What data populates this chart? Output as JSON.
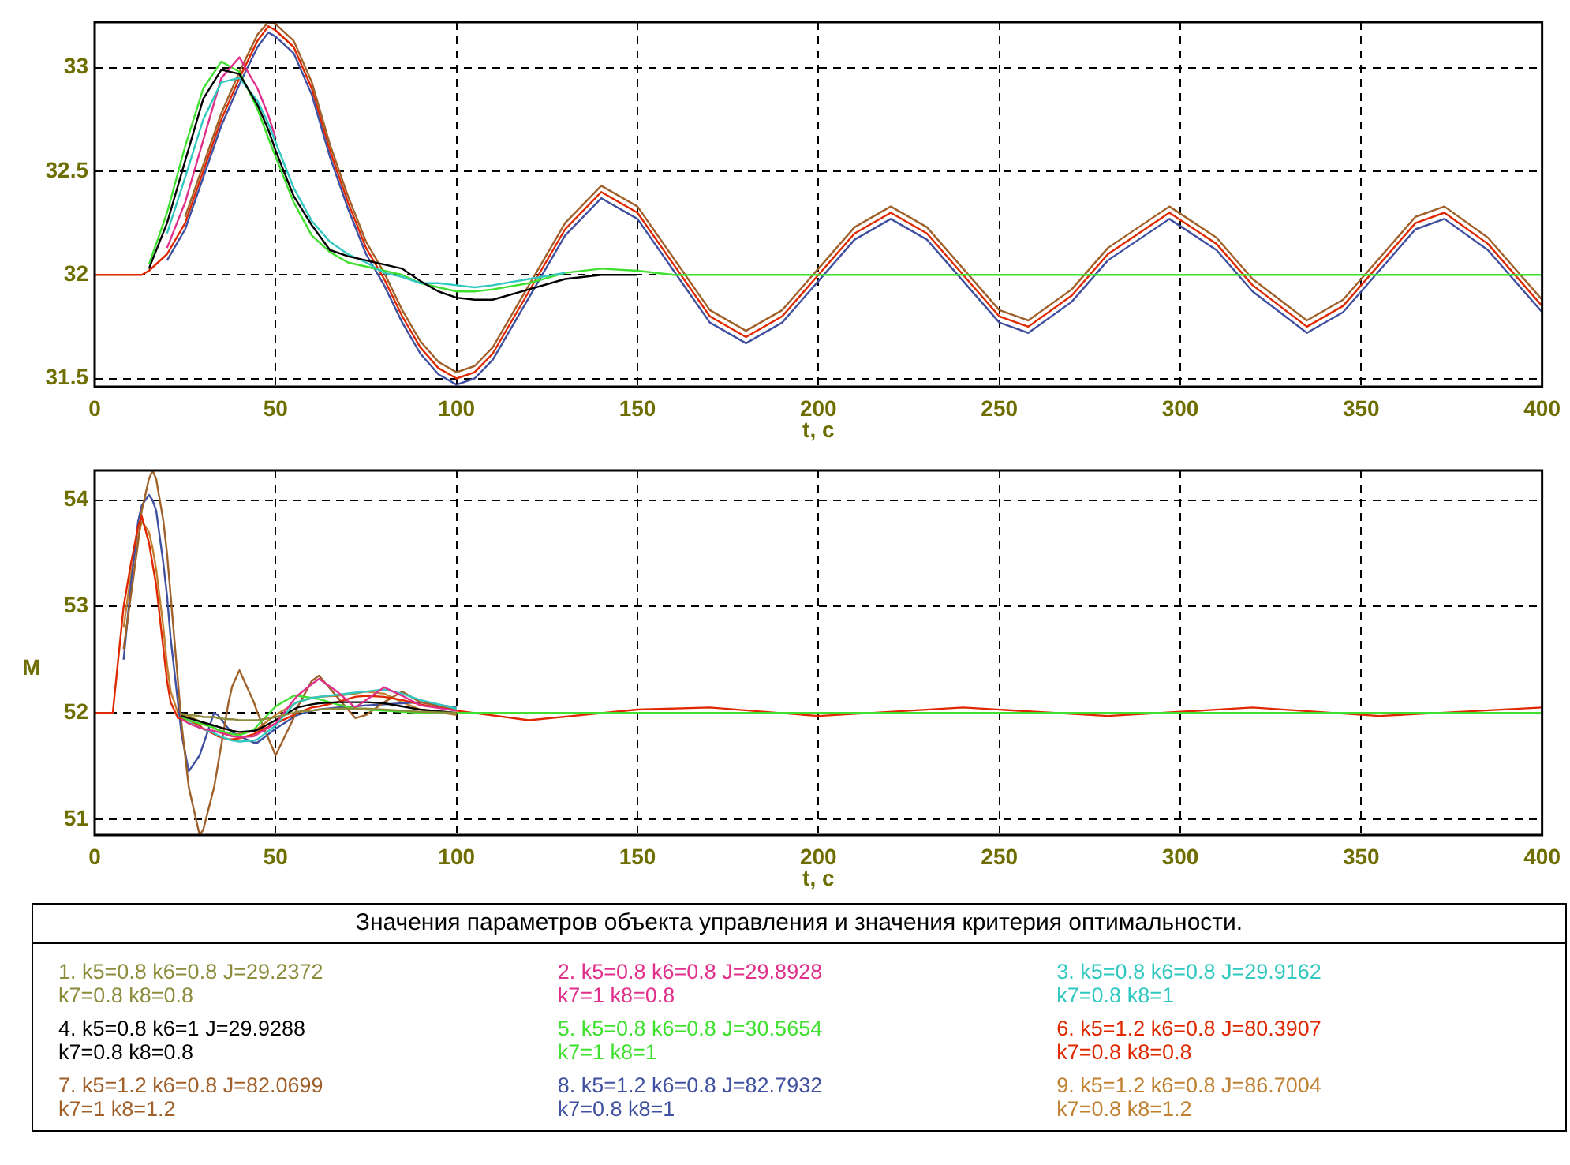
{
  "chart_data": [
    {
      "type": "line",
      "xlabel": "t, c",
      "xlim": [
        0,
        400
      ],
      "xticks": [
        0,
        50,
        100,
        150,
        200,
        250,
        300,
        350,
        400
      ],
      "ylim": [
        31.46,
        33.22
      ],
      "yticks": [
        31.5,
        32,
        32.5,
        33
      ],
      "grid": true,
      "line_style": "solid",
      "x": [
        0,
        5,
        10,
        13,
        15,
        20,
        25,
        30,
        35,
        40,
        45,
        48,
        50,
        55,
        60,
        65,
        70,
        75,
        80,
        85,
        90,
        95,
        100,
        105,
        110,
        120,
        130,
        140,
        150,
        160,
        170,
        180,
        190,
        200,
        210,
        220,
        230,
        240,
        250,
        258,
        270,
        280,
        297,
        310,
        320,
        335,
        345,
        355,
        365,
        373,
        385,
        400
      ],
      "series": [
        {
          "color": "#000000",
          "values": [
            null,
            null,
            null,
            null,
            32.03,
            32.25,
            32.55,
            32.85,
            32.99,
            32.97,
            32.82,
            32.7,
            32.6,
            32.38,
            32.24,
            32.12,
            32.09,
            32.07,
            32.05,
            32.03,
            31.97,
            31.92,
            31.89,
            31.88,
            31.88,
            31.93,
            31.98,
            32.0,
            32.0,
            null,
            null,
            null,
            null,
            null,
            null,
            null,
            null,
            null,
            null,
            null,
            null,
            null,
            null,
            null,
            null,
            null,
            null,
            null,
            null,
            null,
            null,
            null
          ]
        },
        {
          "color": "#30c8c0",
          "values": [
            null,
            null,
            null,
            null,
            null,
            32.2,
            32.47,
            32.75,
            32.93,
            32.95,
            32.84,
            32.73,
            32.64,
            32.42,
            32.26,
            32.16,
            32.1,
            32.06,
            32.01,
            31.99,
            31.96,
            31.96,
            31.95,
            31.94,
            31.95,
            31.98,
            32.01,
            null,
            null,
            null,
            null,
            null,
            null,
            null,
            null,
            null,
            null,
            null,
            null,
            null,
            null,
            null,
            null,
            null,
            null,
            null,
            null,
            null,
            null,
            null,
            null,
            null
          ]
        },
        {
          "color": "#e0308c",
          "values": [
            null,
            null,
            null,
            null,
            null,
            32.13,
            32.35,
            32.65,
            32.95,
            33.05,
            32.9,
            32.77,
            32.66,
            null,
            null,
            null,
            null,
            null,
            null,
            null,
            null,
            null,
            null,
            null,
            null,
            null,
            null,
            null,
            null,
            null,
            null,
            null,
            null,
            null,
            null,
            null,
            null,
            null,
            null,
            null,
            null,
            null,
            null,
            null,
            null,
            null,
            null,
            null,
            null,
            null,
            null,
            null
          ]
        },
        {
          "color": "#40e030",
          "values": [
            null,
            null,
            null,
            null,
            32.05,
            32.3,
            32.62,
            32.9,
            33.03,
            32.98,
            32.8,
            32.66,
            32.57,
            32.35,
            32.19,
            32.11,
            32.06,
            32.04,
            32.02,
            32.0,
            31.96,
            31.94,
            31.92,
            31.92,
            31.93,
            31.96,
            32.01,
            32.03,
            32.02,
            32.0,
            32,
            32,
            32,
            32,
            32,
            32,
            32,
            32,
            32,
            32,
            32,
            32,
            32,
            32,
            32,
            32,
            32,
            32,
            32,
            32,
            32,
            32
          ]
        },
        {
          "color": "#4050a0",
          "values": [
            null,
            null,
            null,
            null,
            null,
            32.07,
            32.22,
            32.47,
            32.72,
            32.92,
            33.1,
            33.17,
            33.15,
            33.07,
            32.87,
            32.57,
            32.32,
            32.1,
            31.95,
            31.77,
            31.62,
            31.52,
            31.47,
            31.5,
            31.59,
            31.89,
            32.19,
            32.37,
            32.27,
            32.02,
            31.77,
            31.67,
            31.77,
            31.97,
            32.17,
            32.27,
            32.17,
            31.97,
            31.77,
            31.72,
            31.87,
            32.07,
            32.27,
            32.12,
            31.92,
            31.72,
            31.82,
            32.02,
            32.22,
            32.27,
            32.12,
            31.82
          ]
        },
        {
          "color": "#a0602a",
          "values": [
            null,
            null,
            null,
            null,
            null,
            null,
            32.28,
            32.53,
            32.78,
            32.98,
            33.16,
            33.22,
            33.21,
            33.13,
            32.93,
            32.63,
            32.38,
            32.16,
            32.01,
            31.83,
            31.68,
            31.58,
            31.53,
            31.56,
            31.65,
            31.95,
            32.25,
            32.43,
            32.33,
            32.08,
            31.83,
            31.73,
            31.83,
            32.03,
            32.23,
            32.33,
            32.23,
            32.03,
            31.83,
            31.78,
            31.93,
            32.13,
            32.33,
            32.18,
            31.98,
            31.78,
            31.88,
            32.08,
            32.28,
            32.33,
            32.18,
            31.88
          ]
        },
        {
          "color": "#e02800",
          "values": [
            32,
            32,
            32,
            32,
            32.02,
            32.1,
            32.25,
            32.5,
            32.75,
            32.95,
            33.13,
            33.2,
            33.18,
            33.1,
            32.9,
            32.6,
            32.35,
            32.13,
            31.98,
            31.8,
            31.65,
            31.55,
            31.5,
            31.53,
            31.62,
            31.92,
            32.22,
            32.4,
            32.3,
            32.05,
            31.8,
            31.7,
            31.8,
            32.0,
            32.2,
            32.3,
            32.2,
            32.0,
            31.8,
            31.75,
            31.9,
            32.1,
            32.3,
            32.15,
            31.95,
            31.75,
            31.85,
            32.05,
            32.25,
            32.3,
            32.15,
            31.85
          ]
        }
      ]
    },
    {
      "type": "line",
      "xlabel": "t, c",
      "ylabel": "M",
      "xlim": [
        0,
        400
      ],
      "xticks": [
        0,
        50,
        100,
        150,
        200,
        250,
        300,
        350,
        400
      ],
      "ylim": [
        50.85,
        54.28
      ],
      "yticks": [
        51,
        52,
        53,
        54
      ],
      "grid": true,
      "line_style": "solid",
      "legend": "bottom",
      "legend_title": "Значения параметров объекта управления и значения критерия оптимальности.",
      "x": [
        0,
        5,
        8,
        10,
        12,
        13,
        15,
        16,
        17,
        19,
        20,
        21,
        23,
        24,
        26,
        29,
        30,
        33,
        34,
        37,
        38,
        40,
        44,
        45,
        50,
        55,
        56,
        60,
        62,
        67,
        72,
        75,
        80,
        85,
        90,
        100,
        120,
        150,
        170,
        200,
        240,
        280,
        320,
        355,
        400
      ],
      "series": [
        {
          "name": "1. k5=0.8  k6=0.8  J=29.2372\nk7=0.8  k8=0.8",
          "color": "#8c8c3c",
          "values": [
            null,
            null,
            null,
            null,
            null,
            null,
            null,
            null,
            null,
            null,
            null,
            null,
            null,
            51.99,
            51.98,
            51.97,
            51.96,
            51.96,
            51.95,
            51.94,
            51.94,
            51.93,
            51.93,
            51.93,
            51.96,
            52.0,
            52.01,
            52.02,
            52.03,
            52.04,
            52.04,
            52.04,
            52.03,
            52.02,
            52.01,
            52.0,
            null,
            null,
            null,
            null,
            null,
            null,
            null,
            null,
            null
          ]
        },
        {
          "name": "2. k5=0.8  k6=0.8  J=29.8928\nk7=1  k8=0.8",
          "color": "#e0308c",
          "values": [
            null,
            null,
            null,
            null,
            null,
            null,
            null,
            null,
            null,
            null,
            null,
            null,
            null,
            51.94,
            51.9,
            51.86,
            51.85,
            51.83,
            51.82,
            51.79,
            51.78,
            51.77,
            51.78,
            51.8,
            51.9,
            52.12,
            52.16,
            52.27,
            52.32,
            52.2,
            52.05,
            52.12,
            52.24,
            52.16,
            52.07,
            52.02,
            null,
            null,
            null,
            null,
            null,
            null,
            null,
            null,
            null
          ]
        },
        {
          "name": "3. k5=0.8  k6=0.8  J=29.9162\nk7=0.8  k8=1",
          "color": "#30c8c0",
          "values": [
            null,
            null,
            null,
            null,
            null,
            null,
            null,
            null,
            null,
            null,
            null,
            null,
            null,
            null,
            51.91,
            51.86,
            51.85,
            51.81,
            51.79,
            51.75,
            51.74,
            51.73,
            51.74,
            51.75,
            51.88,
            52.08,
            52.1,
            52.14,
            52.15,
            52.17,
            52.19,
            52.2,
            52.22,
            52.18,
            52.12,
            52.04,
            null,
            null,
            null,
            null,
            null,
            null,
            null,
            null,
            null
          ]
        },
        {
          "name": "4. k5=0.8  k6=1  J=29.9288\nk7=0.8  k8=0.8",
          "color": "#000000",
          "values": [
            null,
            null,
            null,
            null,
            null,
            null,
            null,
            null,
            null,
            null,
            null,
            null,
            null,
            51.97,
            51.95,
            51.92,
            51.91,
            51.88,
            51.87,
            51.84,
            51.83,
            51.82,
            51.83,
            51.84,
            51.93,
            52.03,
            52.05,
            52.08,
            52.09,
            52.1,
            52.1,
            52.1,
            52.09,
            52.06,
            52.03,
            52.0,
            null,
            null,
            null,
            null,
            null,
            null,
            null,
            null,
            null
          ]
        },
        {
          "name": "5. k5=0.8  k6=0.8  J=30.5654\nk7=1  k8=1",
          "color": "#40e030",
          "values": [
            null,
            null,
            null,
            null,
            null,
            null,
            null,
            null,
            null,
            null,
            null,
            null,
            null,
            51.96,
            51.93,
            51.9,
            51.89,
            51.86,
            51.84,
            51.81,
            51.8,
            51.79,
            51.84,
            51.88,
            52.06,
            52.16,
            52.16,
            52.14,
            52.13,
            52.08,
            52.04,
            52.03,
            52.02,
            52.01,
            52.0,
            52.0,
            52.0,
            52.0,
            52.0,
            52.0,
            52.0,
            52.0,
            52.0,
            52.0,
            52.0
          ]
        },
        {
          "name": "6. k5=1.2  k6=0.8  J=80.3907\nk7=0.8  k8=0.8",
          "color": "#e02800",
          "values": [
            52,
            52,
            53.0,
            53.4,
            53.75,
            53.85,
            53.6,
            53.4,
            53.2,
            52.6,
            52.3,
            52.1,
            51.95,
            51.95,
            51.93,
            51.88,
            51.85,
            51.8,
            51.78,
            51.75,
            51.75,
            51.76,
            51.8,
            51.82,
            51.9,
            51.98,
            52.0,
            52.05,
            52.06,
            52.1,
            52.15,
            52.16,
            52.15,
            52.12,
            52.08,
            52.02,
            51.93,
            52.03,
            52.05,
            51.97,
            52.05,
            51.97,
            52.05,
            51.97,
            52.05
          ]
        },
        {
          "name": "7. k5=1.2  k6=0.8  J=82.0699\nk7=1  k8=1.2",
          "color": "#a0602a",
          "values": [
            null,
            null,
            52.6,
            53.1,
            53.6,
            53.9,
            54.2,
            54.28,
            54.2,
            53.8,
            53.5,
            53.1,
            52.3,
            51.9,
            51.3,
            50.85,
            50.9,
            51.3,
            51.5,
            52.1,
            52.25,
            52.4,
            52.1,
            52.0,
            51.6,
            51.95,
            52.05,
            52.3,
            52.35,
            52.15,
            51.95,
            51.98,
            52.1,
            52.2,
            52.1,
            52.03,
            null,
            null,
            null,
            null,
            null,
            null,
            null,
            null,
            null
          ]
        },
        {
          "name": "8. k5=1.2  k6=0.8  J=82.7932\nk7=0.8  k8=1",
          "color": "#4050a0",
          "values": [
            null,
            null,
            52.5,
            53.2,
            53.8,
            53.95,
            54.05,
            54.0,
            53.9,
            53.4,
            53.1,
            52.7,
            52.1,
            51.8,
            51.45,
            51.6,
            51.7,
            52.0,
            51.98,
            51.85,
            51.82,
            51.78,
            51.72,
            51.72,
            51.85,
            51.96,
            51.98,
            52.02,
            52.03,
            52.05,
            52.06,
            52.07,
            52.08,
            52.09,
            52.1,
            52.05,
            null,
            null,
            null,
            null,
            null,
            null,
            null,
            null,
            null
          ]
        },
        {
          "name": "9. k5=1.2  k6=0.8  J=86.7004\nk7=0.8  k8=1.2",
          "color": "#c08030",
          "values": [
            null,
            null,
            52.8,
            53.3,
            53.65,
            53.8,
            53.7,
            53.55,
            53.35,
            52.8,
            52.45,
            52.2,
            52.0,
            51.98,
            51.97,
            51.92,
            51.9,
            51.86,
            51.84,
            51.8,
            51.8,
            51.8,
            51.83,
            51.85,
            51.98,
            52.08,
            52.1,
            52.14,
            52.15,
            52.16,
            52.18,
            52.2,
            52.18,
            52.1,
            52.03,
            51.98,
            null,
            null,
            null,
            null,
            null,
            null,
            null,
            null,
            null
          ]
        }
      ]
    }
  ]
}
